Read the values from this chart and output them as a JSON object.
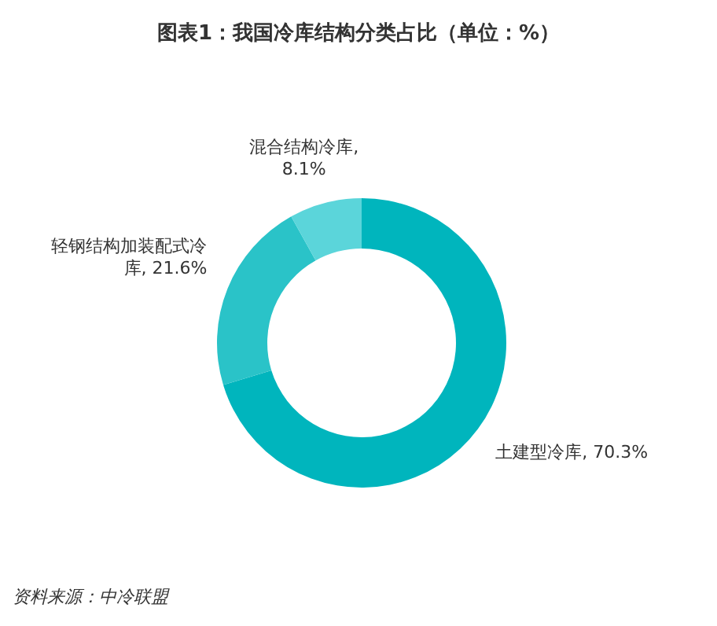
{
  "chart_data": {
    "type": "donut",
    "title": "图表1：我国冷库结构分类占比（单位：%）",
    "categories": [
      "土建型冷库",
      "轻钢结构加装配式冷库",
      "混合结构冷库"
    ],
    "values": [
      70.3,
      21.6,
      8.1
    ],
    "colors": [
      "#00b5bd",
      "#2ac3c8",
      "#5bd5da"
    ],
    "value_labels": [
      ", 70.3%",
      ", 21.6%",
      ", 8.1%"
    ],
    "annotations": [
      "资料来源：中冷联盟"
    ]
  }
}
